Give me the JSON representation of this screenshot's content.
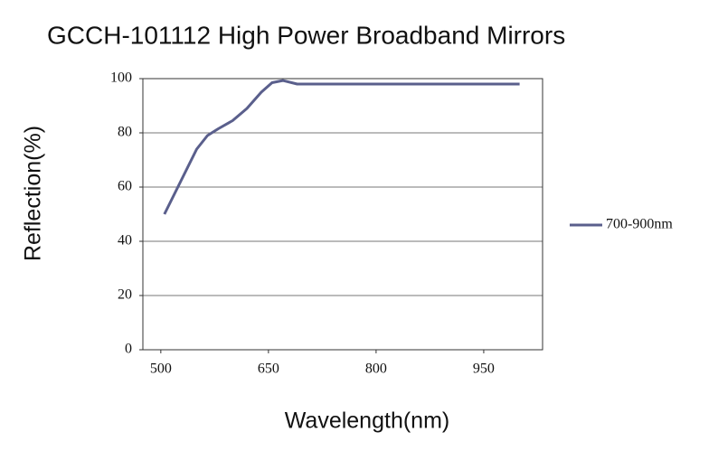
{
  "chart_data": {
    "type": "line",
    "title": "GCCH-101112 High Power Broadband Mirrors",
    "x_label": "Wavelength(nm)",
    "y_label": "Reflection(%)",
    "x": [
      505,
      520,
      535,
      550,
      565,
      580,
      600,
      620,
      640,
      655,
      670,
      690,
      720,
      800,
      900,
      1000
    ],
    "series": [
      {
        "name": "700-900nm",
        "color": "#5a5f8c",
        "values": [
          50,
          58,
          66,
          74,
          79,
          81.5,
          84.5,
          89,
          95,
          98.5,
          99.3,
          98,
          98,
          98,
          98,
          98
        ]
      }
    ],
    "xlim": [
      475,
      1032
    ],
    "xticks": [
      500,
      650,
      800,
      950
    ],
    "ylim": [
      0,
      100
    ],
    "yticks": [
      0,
      20,
      40,
      60,
      80,
      100
    ],
    "grid": true,
    "legend": "right"
  }
}
